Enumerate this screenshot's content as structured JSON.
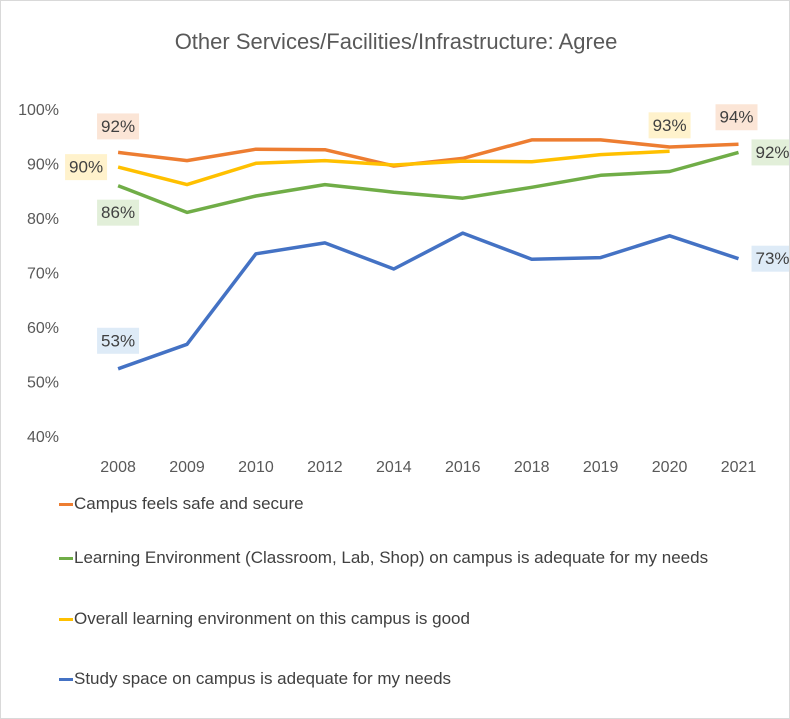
{
  "chart_data": {
    "type": "line",
    "title": "Other Services/Facilities/Infrastructure:  Agree",
    "categories": [
      "2008",
      "2009",
      "2010",
      "2012",
      "2014",
      "2016",
      "2018",
      "2019",
      "2020",
      "2021"
    ],
    "ylim": [
      40,
      100
    ],
    "yticks": [
      {
        "value": 40,
        "label": "40%"
      },
      {
        "value": 50,
        "label": "50%"
      },
      {
        "value": 60,
        "label": "60%"
      },
      {
        "value": 70,
        "label": "70%"
      },
      {
        "value": 80,
        "label": "80%"
      },
      {
        "value": 90,
        "label": "90%"
      },
      {
        "value": 100,
        "label": "100%"
      }
    ],
    "grid": false,
    "legend": "bottom",
    "series": [
      {
        "name": "Campus feels safe and secure",
        "color": "#ed7d31",
        "values": [
          92.4,
          90.9,
          93,
          92.9,
          89.9,
          91.3,
          94.7,
          94.7,
          93.4,
          93.9
        ],
        "value_labels": [
          "92%",
          null,
          null,
          null,
          null,
          null,
          null,
          null,
          null,
          "94%"
        ]
      },
      {
        "name": "Learning Environment (Classroom, Lab, Shop) on campus is adequate for my needs",
        "color": "#70ad47",
        "values": [
          86.3,
          81.4,
          84.4,
          86.5,
          85.1,
          84,
          86,
          88.2,
          88.9,
          92.4
        ],
        "value_labels": [
          "86%",
          null,
          null,
          null,
          null,
          null,
          null,
          null,
          null,
          "92%"
        ]
      },
      {
        "name": "Overall learning environment on this campus is good",
        "color": "#ffc000",
        "values": [
          89.7,
          86.5,
          90.4,
          90.9,
          90.1,
          90.8,
          90.7,
          92,
          92.6,
          null
        ],
        "value_labels": [
          "90%",
          null,
          null,
          null,
          null,
          null,
          null,
          null,
          "93%",
          null
        ]
      },
      {
        "name": "Study space on campus is adequate for my needs",
        "color": "#4472c4",
        "values": [
          52.7,
          57.2,
          73.8,
          75.8,
          71,
          77.6,
          72.8,
          73.1,
          77.1,
          72.9
        ],
        "value_labels": [
          "53%",
          null,
          null,
          null,
          null,
          null,
          null,
          null,
          null,
          "73%"
        ]
      }
    ]
  }
}
